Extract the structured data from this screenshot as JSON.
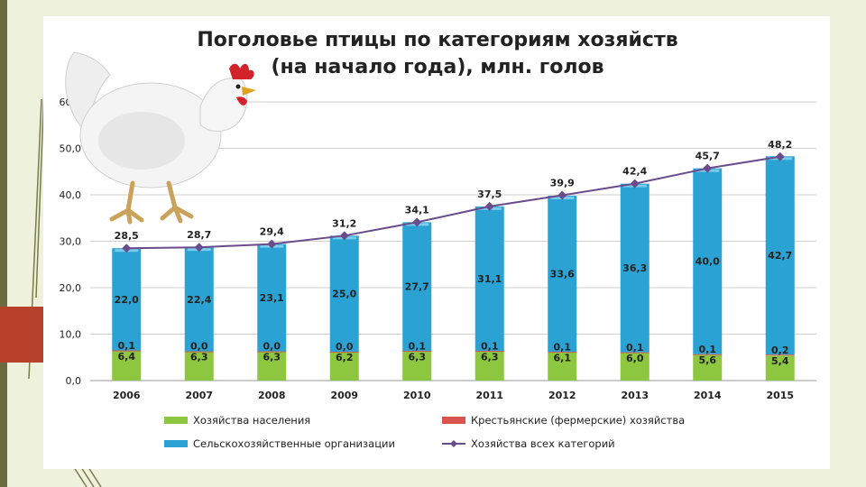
{
  "slide": {
    "title_line1": "Поголовье птицы по категориям хозяйств",
    "title_line2": "(на начало года), млн. голов"
  },
  "colors": {
    "households": "#8dc63f",
    "farms": "#d9534f",
    "agri_orgs": "#2aa3d4",
    "total_line": "#6a4c8c"
  },
  "chart_data": {
    "type": "bar",
    "stacked": true,
    "title": "Поголовье птицы по категориям хозяйств (на начало года), млн. голов",
    "categories": [
      "2006",
      "2007",
      "2008",
      "2009",
      "2010",
      "2011",
      "2012",
      "2013",
      "2014",
      "2015"
    ],
    "series": [
      {
        "name": "Хозяйства населения",
        "type": "bar",
        "values": [
          6.4,
          6.3,
          6.3,
          6.2,
          6.3,
          6.3,
          6.1,
          6.0,
          5.6,
          5.4
        ],
        "labels": [
          "6,4",
          "6,3",
          "6,3",
          "6,2",
          "6,3",
          "6,3",
          "6,1",
          "6,0",
          "5,6",
          "5,4"
        ]
      },
      {
        "name": "Крестьянские (фермерские) хозяйства",
        "type": "bar",
        "values": [
          0.1,
          0.0,
          0.0,
          0.0,
          0.1,
          0.1,
          0.1,
          0.1,
          0.1,
          0.2
        ],
        "labels": [
          "0,1",
          "0,0",
          "0,0",
          "0,0",
          "0,1",
          "0,1",
          "0,1",
          "0,1",
          "0,1",
          "0,2"
        ]
      },
      {
        "name": "Сельскохозяйственные организации",
        "type": "bar",
        "values": [
          22.0,
          22.4,
          23.1,
          25.0,
          27.7,
          31.1,
          33.6,
          36.3,
          40.0,
          42.7
        ],
        "labels": [
          "22,0",
          "22,4",
          "23,1",
          "25,0",
          "27,7",
          "31,1",
          "33,6",
          "36,3",
          "40,0",
          "42,7"
        ]
      },
      {
        "name": "Хозяйства всех категорий",
        "type": "line",
        "values": [
          28.5,
          28.7,
          29.4,
          31.2,
          34.1,
          37.5,
          39.9,
          42.4,
          45.7,
          48.2
        ],
        "labels": [
          "28,5",
          "28,7",
          "29,4",
          "31,2",
          "34,1",
          "37,5",
          "39,9",
          "42,4",
          "45,7",
          "48,2"
        ]
      }
    ],
    "ylim": [
      0,
      60
    ],
    "yticks": [
      "0,0",
      "10,0",
      "20,0",
      "30,0",
      "40,0",
      "50,0",
      "60,0"
    ],
    "grid": true,
    "legend_position": "bottom"
  }
}
